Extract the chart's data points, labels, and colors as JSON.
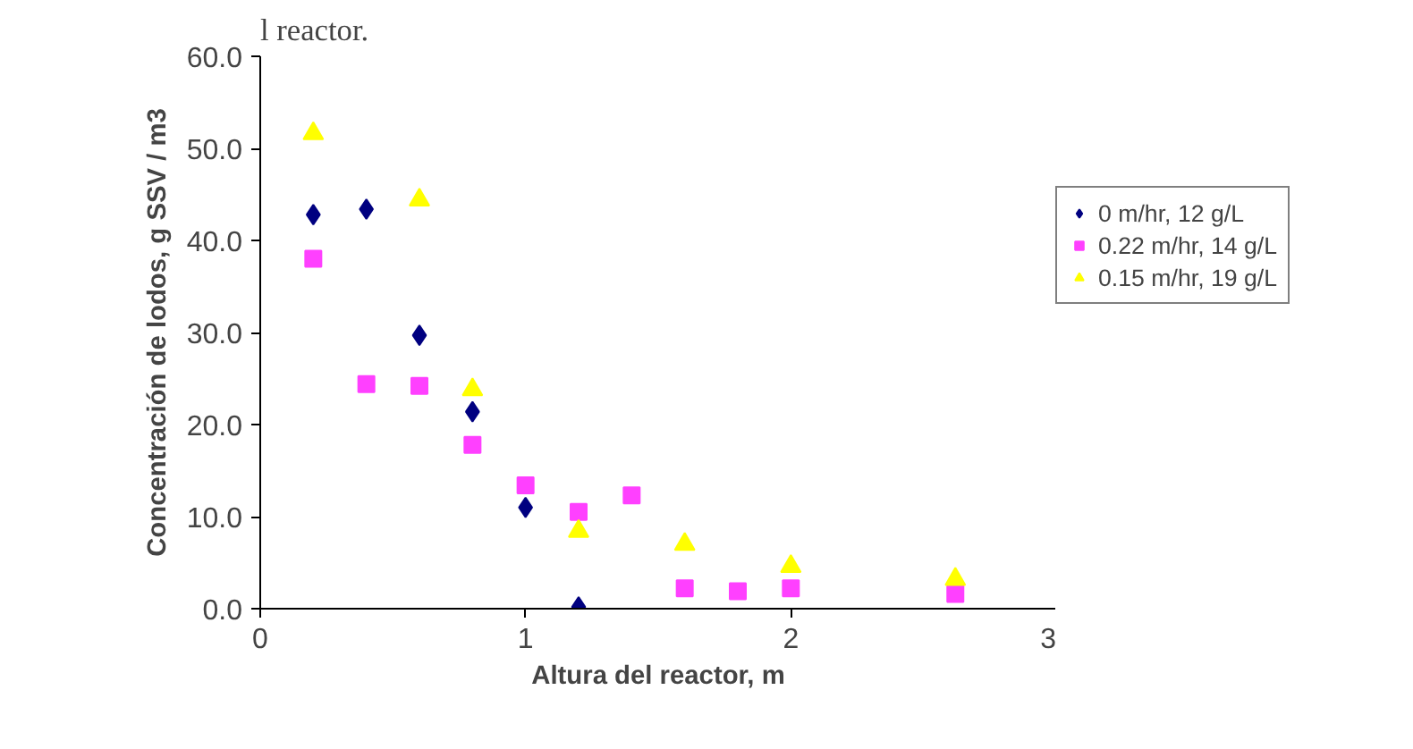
{
  "chart_data": {
    "type": "scatter",
    "xlabel": "Altura del reactor, m",
    "ylabel": "Concentración de lodos, g SSV / m3",
    "annotations": [
      "l reactor."
    ],
    "xlim": [
      0,
      3
    ],
    "xticks": [
      0,
      1,
      2,
      3
    ],
    "ylim": [
      0,
      60
    ],
    "yticks": [
      {
        "value": 0,
        "label": "0.0"
      },
      {
        "value": 10,
        "label": "10.0"
      },
      {
        "value": 20,
        "label": "20.0"
      },
      {
        "value": 30,
        "label": "30.0"
      },
      {
        "value": 40,
        "label": "40.0"
      },
      {
        "value": 50,
        "label": "50.0"
      },
      {
        "value": 60,
        "label": "60.0"
      }
    ],
    "grid": false,
    "legend": "right",
    "series": [
      {
        "name": "0 m/hr, 12 g/L",
        "color": "#000080",
        "marker": "diamond",
        "x": [
          0.2,
          0.4,
          0.6,
          0.8,
          1.0,
          1.2
        ],
        "values": [
          42.8,
          43.4,
          29.7,
          21.4,
          11.0,
          0.2
        ]
      },
      {
        "name": "0.22 m/hr, 14 g/L",
        "color": "#ff40ff",
        "marker": "square",
        "x": [
          0.2,
          0.4,
          0.6,
          0.8,
          1.0,
          1.2,
          1.4,
          1.6,
          1.8,
          2.0,
          2.62
        ],
        "values": [
          38.0,
          24.4,
          24.2,
          17.8,
          13.4,
          10.5,
          12.3,
          2.2,
          1.9,
          2.2,
          1.6
        ]
      },
      {
        "name": "0.15 m/hr, 19 g/L",
        "color": "#ffff00",
        "marker": "triangle",
        "x": [
          0.2,
          0.6,
          0.8,
          1.2,
          1.6,
          2.0,
          2.62
        ],
        "values": [
          51.6,
          44.4,
          23.8,
          8.4,
          7.0,
          4.6,
          3.2
        ]
      }
    ]
  }
}
